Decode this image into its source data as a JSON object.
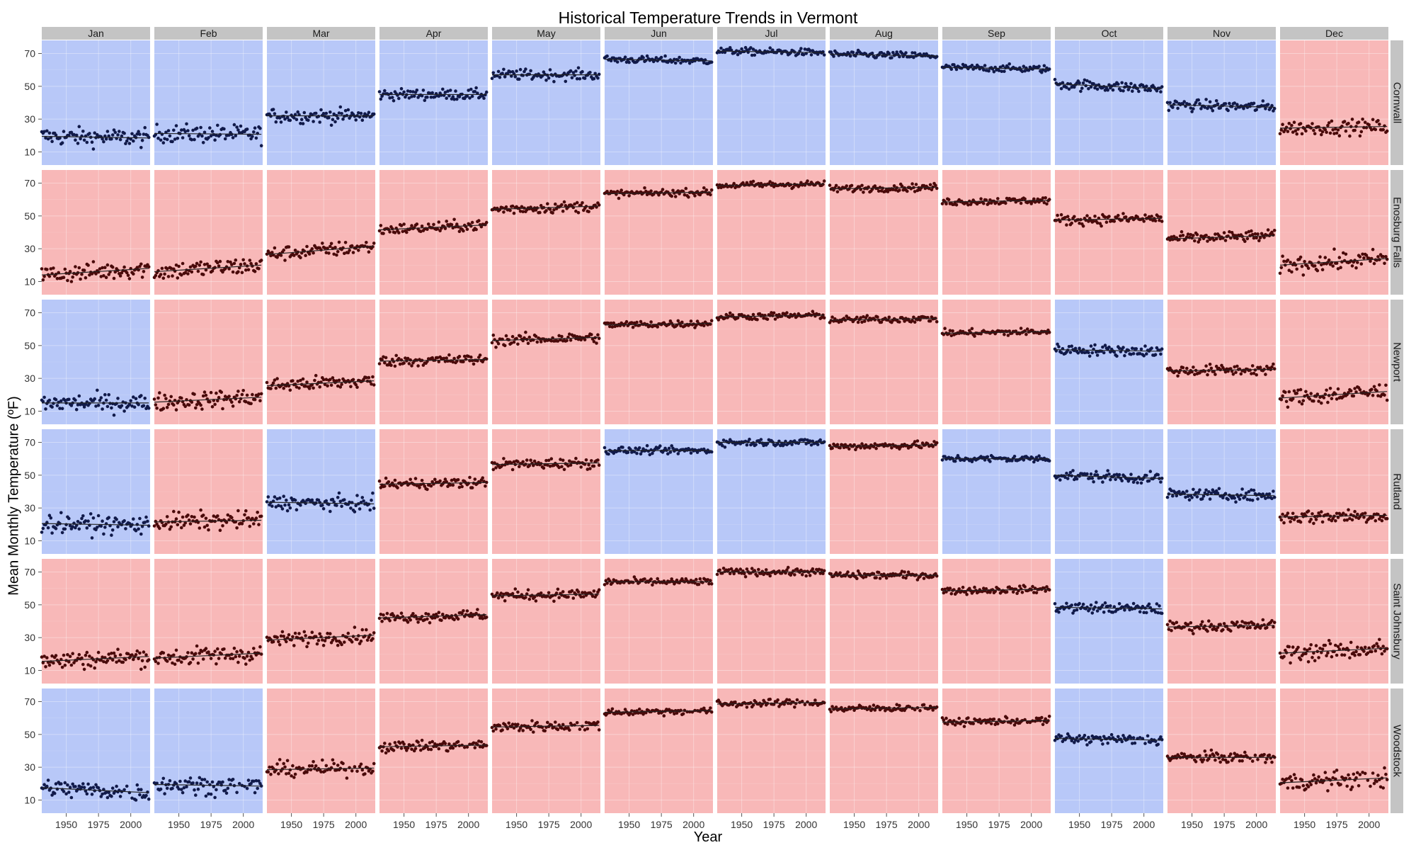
{
  "chart_data": {
    "type": "scatter",
    "title": "Historical Temperature Trends in Vermont",
    "xlabel": "Year",
    "ylabel": "Mean Monthly Temperature (ºF)",
    "xlim": [
      1931,
      2015
    ],
    "ylim": [
      2,
      78
    ],
    "x_ticks": [
      1950,
      1975,
      2000
    ],
    "y_ticks": [
      10,
      30,
      50,
      70
    ],
    "grid": true,
    "months": [
      "Jan",
      "Feb",
      "Mar",
      "Apr",
      "May",
      "Jun",
      "Jul",
      "Aug",
      "Sep",
      "Oct",
      "Nov",
      "Dec"
    ],
    "stations": [
      "Cornwall",
      "Enosburg Falls",
      "Newport",
      "Rutland",
      "Saint Johnsbury",
      "Woodstock"
    ],
    "trend_colors": {
      "blue": "#b8c8f8",
      "red": "#f8b8b8",
      "blue_point": "#111a4a",
      "red_point": "#4a0a0a"
    },
    "panels": [
      {
        "station": "Cornwall",
        "trends": [
          "blue",
          "blue",
          "blue",
          "blue",
          "blue",
          "blue",
          "blue",
          "blue",
          "blue",
          "blue",
          "blue",
          "red"
        ],
        "means": [
          19,
          21,
          32,
          45,
          57,
          66,
          71,
          69,
          61,
          50,
          38,
          25
        ],
        "slopes": [
          -1.0,
          -0.5,
          0,
          0,
          0,
          -1.0,
          -1.0,
          -1.0,
          -1.0,
          -3.0,
          -1.5,
          1.0
        ],
        "spread": [
          5,
          5,
          4,
          3,
          3,
          2,
          2,
          2,
          2,
          3,
          3,
          4
        ]
      },
      {
        "station": "Enosburg Falls",
        "trends": [
          "red",
          "red",
          "red",
          "red",
          "red",
          "red",
          "red",
          "red",
          "red",
          "red",
          "red",
          "red"
        ],
        "means": [
          16,
          18,
          29,
          43,
          55,
          64,
          69,
          67,
          59,
          48,
          37,
          22
        ],
        "slopes": [
          4,
          4,
          5,
          3,
          2,
          1,
          1,
          1,
          1,
          1,
          2,
          4
        ],
        "spread": [
          5,
          5,
          4,
          3,
          3,
          2,
          2,
          2,
          2,
          3,
          3,
          5
        ]
      },
      {
        "station": "Newport",
        "trends": [
          "blue",
          "red",
          "red",
          "red",
          "red",
          "red",
          "red",
          "red",
          "red",
          "blue",
          "red",
          "red"
        ],
        "means": [
          15,
          17,
          27,
          41,
          54,
          63,
          68,
          66,
          58,
          47,
          35,
          20
        ],
        "slopes": [
          0,
          3,
          3,
          1,
          2,
          1,
          1,
          1,
          1,
          -1,
          1,
          4
        ],
        "spread": [
          5,
          5,
          4,
          3,
          3,
          2,
          2,
          2,
          2,
          3,
          3,
          5
        ]
      },
      {
        "station": "Rutland",
        "trends": [
          "blue",
          "red",
          "blue",
          "red",
          "red",
          "blue",
          "blue",
          "red",
          "blue",
          "blue",
          "blue",
          "red"
        ],
        "means": [
          20,
          22,
          33,
          45,
          57,
          65,
          70,
          68,
          60,
          49,
          38,
          25
        ],
        "slopes": [
          -1,
          1,
          -1,
          1,
          1,
          0,
          0,
          1,
          0,
          -2,
          -1,
          1
        ],
        "spread": [
          5,
          5,
          4,
          3,
          3,
          2,
          2,
          2,
          2,
          3,
          3,
          4
        ]
      },
      {
        "station": "Saint Johnsbury",
        "trends": [
          "red",
          "red",
          "red",
          "red",
          "red",
          "red",
          "red",
          "red",
          "red",
          "blue",
          "red",
          "red"
        ],
        "means": [
          17,
          19,
          30,
          43,
          56,
          64,
          70,
          68,
          59,
          48,
          37,
          22
        ],
        "slopes": [
          3,
          3,
          3,
          2,
          1,
          0,
          0,
          0,
          1,
          -1,
          1,
          3
        ],
        "spread": [
          5,
          5,
          4,
          3,
          3,
          2,
          2,
          2,
          2,
          3,
          3,
          5
        ]
      },
      {
        "station": "Woodstock",
        "trends": [
          "blue",
          "blue",
          "red",
          "red",
          "red",
          "red",
          "red",
          "red",
          "red",
          "blue",
          "red",
          "red"
        ],
        "means": [
          16,
          19,
          29,
          43,
          55,
          64,
          69,
          66,
          58,
          47,
          36,
          22
        ],
        "slopes": [
          -3,
          -1,
          1,
          1,
          1,
          1,
          1,
          1,
          1,
          -1,
          0,
          3
        ],
        "spread": [
          5,
          5,
          4,
          3,
          3,
          2,
          2,
          2,
          2,
          3,
          3,
          5
        ]
      }
    ]
  }
}
